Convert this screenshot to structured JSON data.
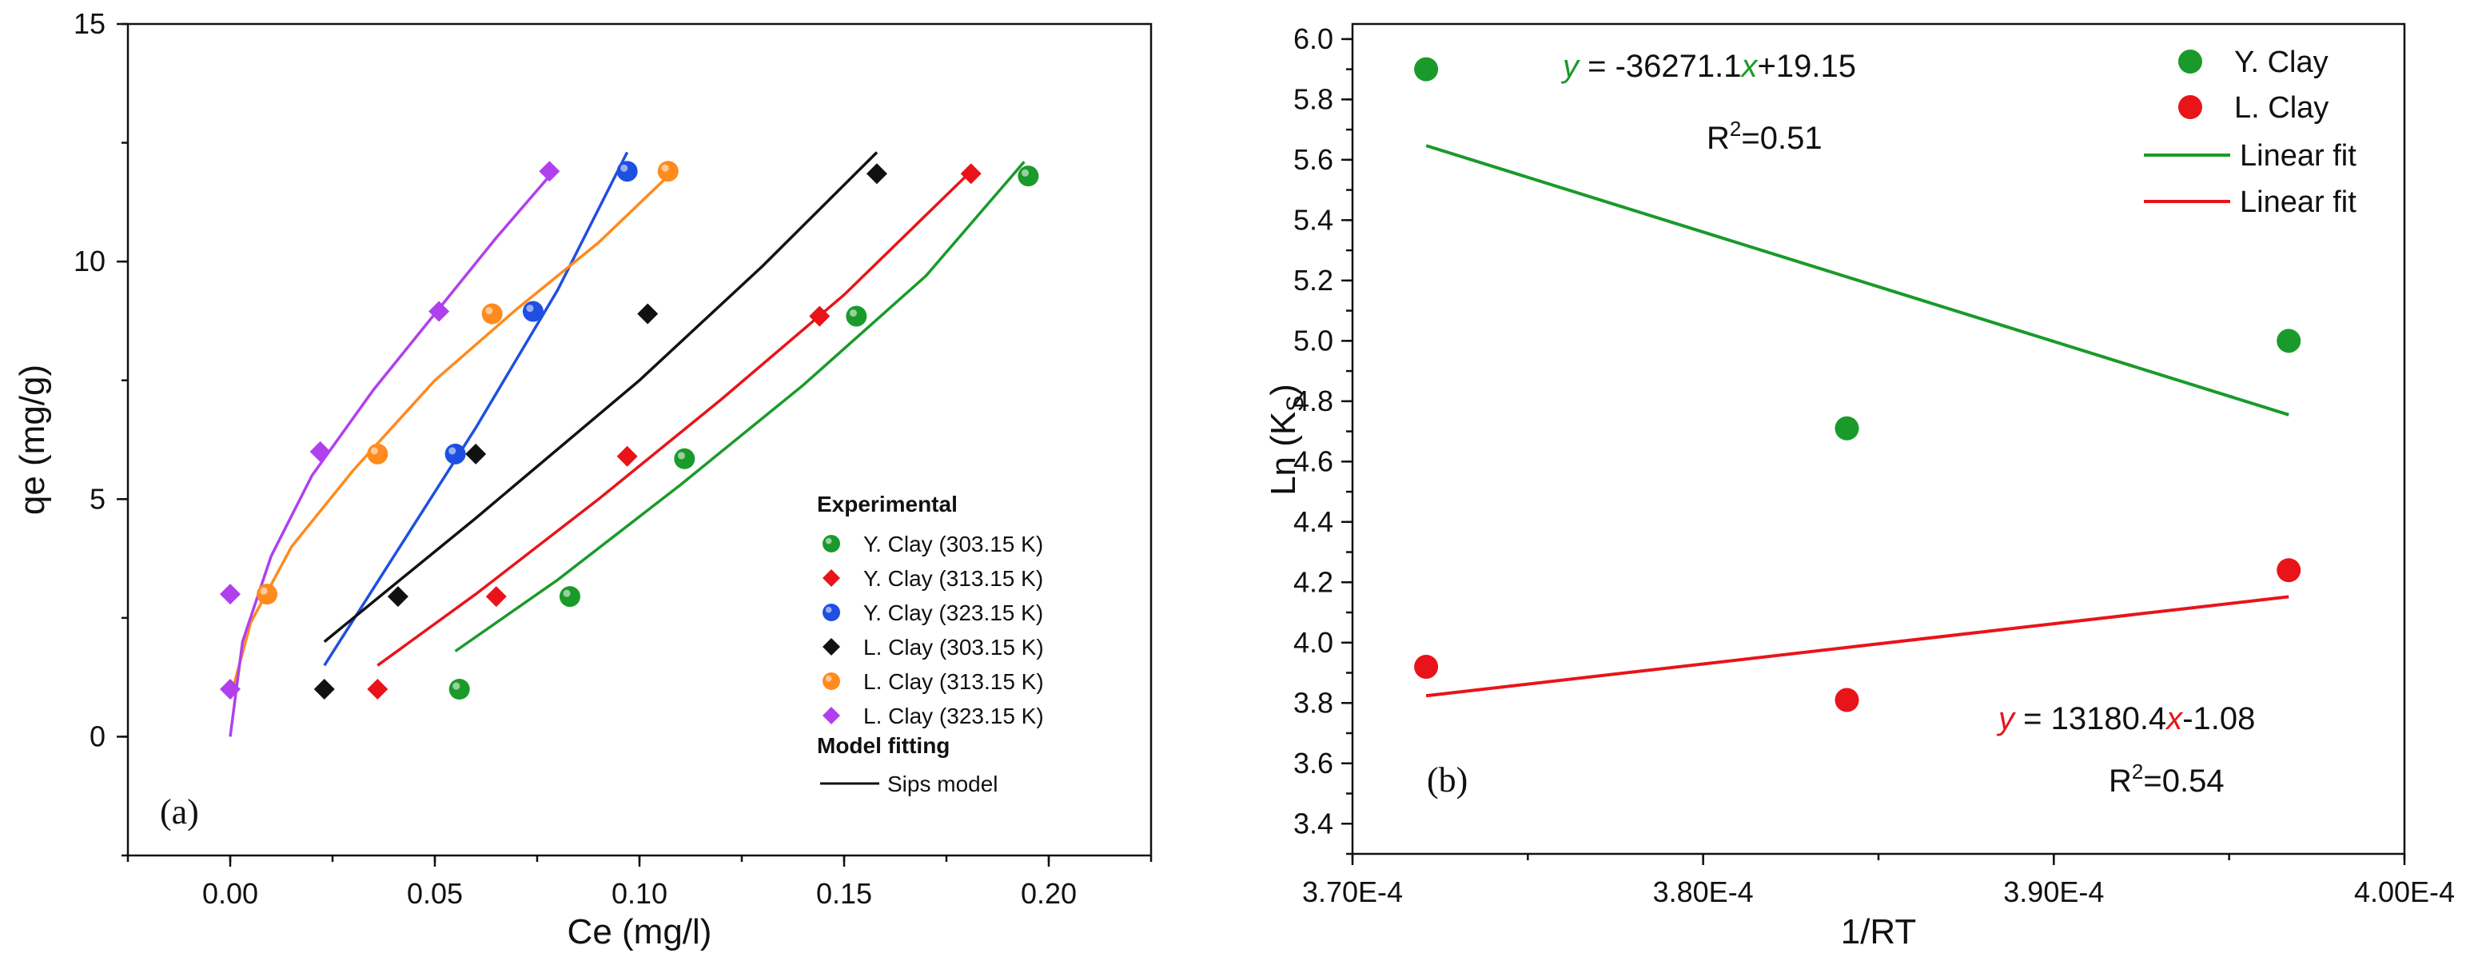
{
  "chart_data": [
    {
      "type": "scatter",
      "panel_label": "(a)",
      "xlabel": "Ce (mg/l)",
      "ylabel": "qe (mg/g)",
      "xlim": [
        -0.025,
        0.225
      ],
      "ylim": [
        -2.5,
        15
      ],
      "xticks": [
        0.0,
        0.05,
        0.1,
        0.15,
        0.2
      ],
      "xtick_labels": [
        "0.00",
        "0.05",
        "0.10",
        "0.15",
        "0.20"
      ],
      "yticks": [
        0,
        5,
        10,
        15
      ],
      "ytick_labels": [
        "0",
        "5",
        "10",
        "15"
      ],
      "legend_title_experimental": "Experimental",
      "legend_title_model": "Model fitting",
      "model_label": "Sips model",
      "series": [
        {
          "name": "Y. Clay (303.15 K)",
          "color": "#1a9a2a",
          "marker": "circle",
          "x": [
            0.056,
            0.083,
            0.111,
            0.153,
            0.195
          ],
          "y": [
            1.0,
            2.95,
            5.85,
            8.85,
            11.8
          ],
          "fit_x": [
            0.055,
            0.08,
            0.11,
            0.14,
            0.17,
            0.194
          ],
          "fit_y": [
            1.8,
            3.3,
            5.3,
            7.4,
            9.7,
            12.1
          ]
        },
        {
          "name": "Y. Clay (313.15 K)",
          "color": "#e8141a",
          "marker": "diamond",
          "x": [
            0.036,
            0.065,
            0.097,
            0.144,
            0.181
          ],
          "y": [
            1.0,
            2.95,
            5.9,
            8.85,
            11.85
          ],
          "fit_x": [
            0.036,
            0.06,
            0.09,
            0.12,
            0.15,
            0.181
          ],
          "fit_y": [
            1.5,
            3.0,
            5.0,
            7.1,
            9.3,
            11.9
          ]
        },
        {
          "name": "Y. Clay (323.15 K)",
          "color": "#1f4fe0",
          "marker": "circle",
          "x": [
            0.055,
            0.074,
            0.097
          ],
          "y": [
            5.95,
            8.95,
            11.9
          ],
          "fit_x": [
            0.023,
            0.04,
            0.06,
            0.08,
            0.097
          ],
          "fit_y": [
            1.5,
            3.8,
            6.5,
            9.4,
            12.3
          ]
        },
        {
          "name": "L. Clay (303.15 K)",
          "color": "#111111",
          "marker": "diamond",
          "x": [
            0.023,
            0.041,
            0.06,
            0.102,
            0.158
          ],
          "y": [
            1.0,
            2.95,
            5.95,
            8.9,
            11.85
          ],
          "fit_x": [
            0.023,
            0.06,
            0.1,
            0.13,
            0.158
          ],
          "fit_y": [
            2.0,
            4.6,
            7.5,
            9.9,
            12.3
          ]
        },
        {
          "name": "L. Clay (313.15 K)",
          "color": "#ff8a1e",
          "marker": "circle",
          "x": [
            0.009,
            0.036,
            0.064,
            0.107
          ],
          "y": [
            3.0,
            5.95,
            8.9,
            11.9
          ],
          "fit_x": [
            0.0,
            0.005,
            0.015,
            0.03,
            0.05,
            0.07,
            0.09,
            0.107
          ],
          "fit_y": [
            0.8,
            2.4,
            4.0,
            5.6,
            7.5,
            9.0,
            10.4,
            11.8
          ]
        },
        {
          "name": "L. Clay (323.15 K)",
          "color": "#b040ee",
          "marker": "diamond",
          "x": [
            0.0,
            0.0,
            0.022,
            0.051,
            0.078
          ],
          "y": [
            1.0,
            3.0,
            6.0,
            8.95,
            11.9
          ],
          "fit_x": [
            0.0,
            0.003,
            0.01,
            0.02,
            0.035,
            0.05,
            0.065,
            0.079
          ],
          "fit_y": [
            0.0,
            2.0,
            3.8,
            5.5,
            7.3,
            8.9,
            10.5,
            11.9
          ]
        }
      ]
    },
    {
      "type": "scatter",
      "panel_label": "(b)",
      "xlabel": "1/RT",
      "ylabel_main": "Ln (K",
      "ylabel_sub": "S",
      "ylabel_close": ")",
      "xlim": [
        0.00037,
        0.0004
      ],
      "ylim": [
        3.3,
        6.05
      ],
      "xticks": [
        0.00037,
        0.00038,
        0.00039,
        0.0004
      ],
      "xtick_labels": [
        "3.70E-4",
        "3.80E-4",
        "3.90E-4",
        "4.00E-4"
      ],
      "yticks": [
        3.4,
        3.6,
        3.8,
        4.0,
        4.2,
        4.4,
        4.6,
        4.8,
        5.0,
        5.2,
        5.4,
        5.6,
        5.8,
        6.0
      ],
      "ytick_labels": [
        "3.4",
        "3.6",
        "3.8",
        "4.0",
        "4.2",
        "4.4",
        "4.6",
        "4.8",
        "5.0",
        "5.2",
        "5.4",
        "5.6",
        "5.8",
        "6.0"
      ],
      "series": [
        {
          "name": "Y. Clay",
          "color": "#1a9a2a",
          "marker": "circle",
          "x": [
            0.0003721,
            0.0003841,
            0.0003967
          ],
          "y": [
            5.9,
            4.71,
            5.0
          ],
          "fit_label": "Linear fit",
          "fit_x": [
            0.0003721,
            0.0003967
          ],
          "fit_y": [
            5.647,
            4.755
          ]
        },
        {
          "name": "L. Clay",
          "color": "#e8141a",
          "marker": "circle",
          "x": [
            0.0003721,
            0.0003841,
            0.0003967
          ],
          "y": [
            3.92,
            3.81,
            4.24
          ],
          "fit_label": "Linear fit",
          "fit_x": [
            0.0003721,
            0.0003967
          ],
          "fit_y": [
            3.824,
            4.152
          ]
        }
      ],
      "annotations": {
        "y_clay_eq": {
          "y": "y",
          "middle": " = -36271.1",
          "x": "x",
          "tail": "+19.15",
          "r2_prefix": "R",
          "r2_sup": "2",
          "r2_value": "=0.51"
        },
        "l_clay_eq": {
          "y": "y",
          "middle": " = 13180.4",
          "x": "x",
          "tail": "-1.08",
          "r2_prefix": "R",
          "r2_sup": "2",
          "r2_value": "=0.54"
        }
      }
    }
  ]
}
